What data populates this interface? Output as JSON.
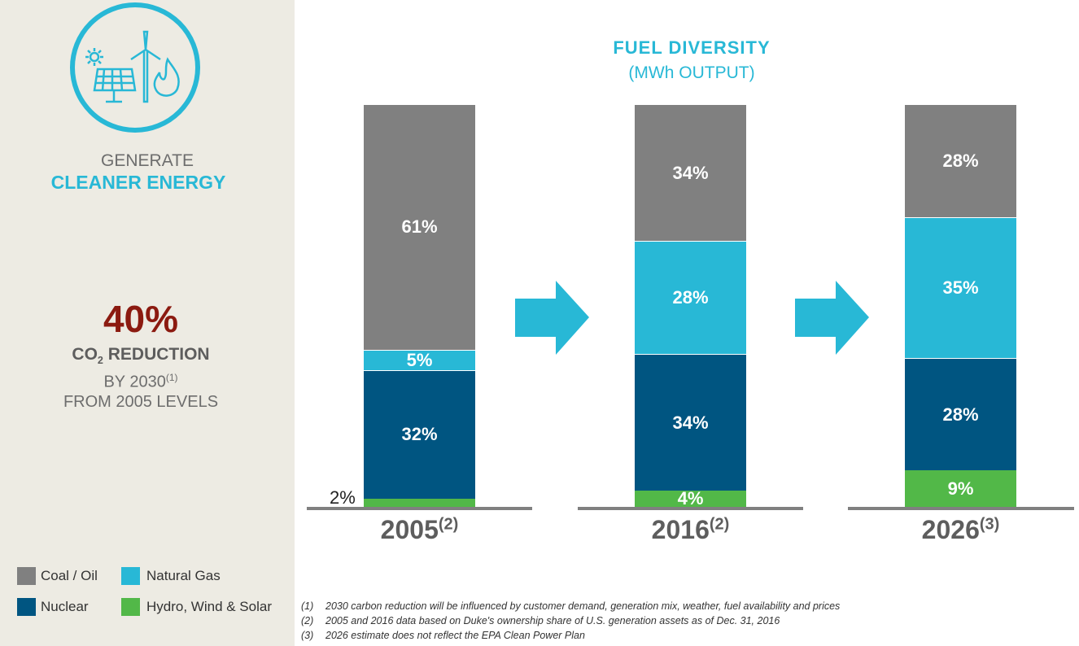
{
  "sidebar": {
    "heading1": "GENERATE",
    "heading2": "CLEANER ENERGY",
    "stat": "40%",
    "stat_label": "CO",
    "stat_label_sub": "2",
    "stat_label_rest": " REDUCTION",
    "by": "BY 2030",
    "by_note": "(1)",
    "from": "FROM 2005 LEVELS",
    "icon": "renewable-energy-icon"
  },
  "legend": [
    {
      "label": "Coal / Oil",
      "color": "#808080"
    },
    {
      "label": "Natural Gas",
      "color": "#28b8d6"
    },
    {
      "label": "Nuclear",
      "color": "#005581"
    },
    {
      "label": "Hydro, Wind & Solar",
      "color": "#52b848"
    }
  ],
  "chart_data": {
    "type": "bar",
    "stacked": true,
    "title": "FUEL DIVERSITY",
    "subtitle": "(MWh OUTPUT)",
    "categories": [
      "2005",
      "2016",
      "2026"
    ],
    "category_notes": [
      "(2)",
      "(2)",
      "(3)"
    ],
    "series": [
      {
        "name": "Hydro, Wind & Solar",
        "color": "#52b848",
        "values": [
          2,
          4,
          9
        ],
        "labels": [
          "2%",
          "4%",
          "9%"
        ]
      },
      {
        "name": "Nuclear",
        "color": "#005581",
        "values": [
          32,
          34,
          28
        ],
        "labels": [
          "32%",
          "34%",
          "28%"
        ]
      },
      {
        "name": "Natural Gas",
        "color": "#28b8d6",
        "values": [
          5,
          28,
          35
        ],
        "labels": [
          "5%",
          "28%",
          "35%"
        ]
      },
      {
        "name": "Coal / Oil",
        "color": "#808080",
        "values": [
          61,
          34,
          28
        ],
        "labels": [
          "61%",
          "34%",
          "28%"
        ]
      }
    ],
    "ylim": [
      0,
      100
    ]
  },
  "footnotes": [
    {
      "num": "(1)",
      "text": "2030 carbon reduction will be influenced by customer demand, generation mix, weather, fuel availability and prices"
    },
    {
      "num": "(2)",
      "text": "2005 and 2016 data based on Duke's ownership share of U.S. generation assets as of Dec. 31, 2016"
    },
    {
      "num": "(3)",
      "text": "2026 estimate does not reflect the EPA Clean Power Plan"
    }
  ]
}
